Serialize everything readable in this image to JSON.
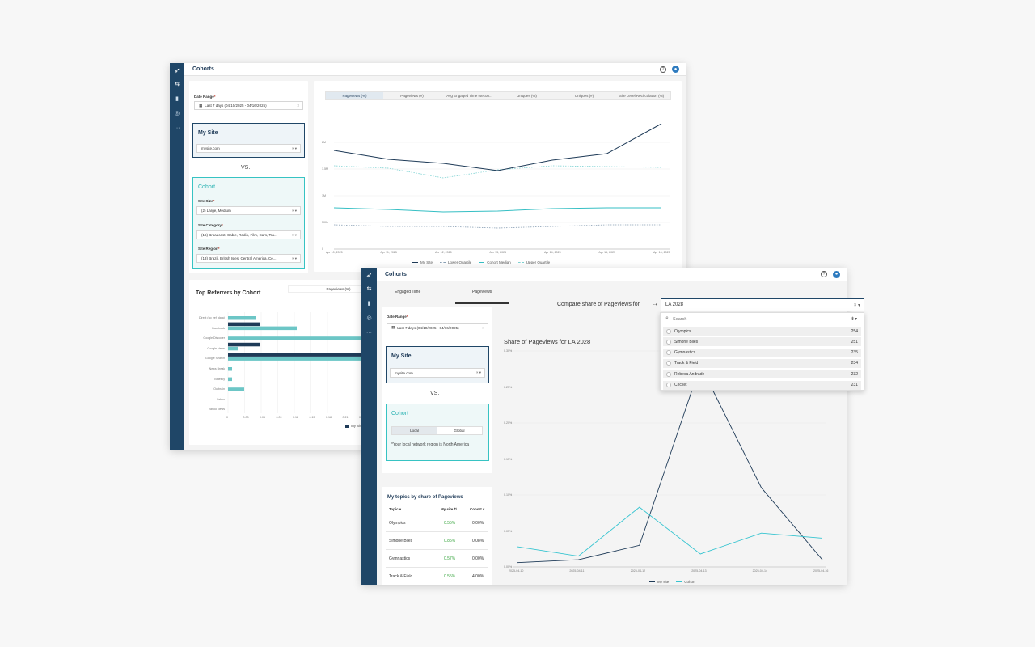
{
  "back_window": {
    "title": "Cohorts",
    "filters": {
      "date_range_label": "Date Range",
      "date_range_value": "Last 7 days (04/10/2025 - 04/16/2025)",
      "my_site_title": "My Site",
      "my_site_value": "mysite.com",
      "vs": "VS.",
      "cohort_title": "Cohort",
      "site_size_label": "Site Size",
      "site_size_value": "(2) Large, Medium",
      "site_category_label": "Site Category",
      "site_category_value": "(16) Broadcast, Cable, Radio, Film, Cars, Tru...",
      "site_region_label": "Site Region",
      "site_region_value": "(13) Brazil, British Isles, Central America, Ce..."
    },
    "metric_tabs": [
      "Pageviews (%)",
      "Pageviews (#)",
      "Avg Engaged Time (secon...",
      "Uniques (%)",
      "Uniques (#)",
      "Site Level Recirculation (%)"
    ],
    "active_metric_tab": 0,
    "trend_chart": {
      "y_ticks": [
        "2M",
        "1.5M",
        "1M",
        "500k",
        "0"
      ],
      "x_ticks": [
        "Apr 10, 2025",
        "Apr 11, 2025",
        "Apr 12, 2025",
        "Apr 13, 2025",
        "Apr 14, 2025",
        "Apr 15, 2025",
        "Apr 16, 2025"
      ],
      "legend": [
        "My Site",
        "Lower Quartile",
        "Cohort Median",
        "Upper Quartile"
      ]
    },
    "referrers": {
      "title": "Top Referrers by Cohort",
      "metric_select": "Pageviews (%)",
      "categories": [
        "Direct (no_ref_data)",
        "Facebook",
        "Google Discover",
        "Google News",
        "Google Search",
        "News Break",
        "Bluesky",
        "Outbrain",
        "Yahoo",
        "Yahoo News"
      ],
      "x_ticks": [
        "0",
        "0.03",
        "0.06",
        "0.09",
        "0.12",
        "0.15",
        "0.18",
        "0.21",
        "0.24",
        "0.27"
      ],
      "legend_my_site": "My Site"
    }
  },
  "front_window": {
    "title": "Cohorts",
    "tabs": [
      "Engaged Time",
      "Pageviews"
    ],
    "active_tab": 1,
    "date_range_label": "Date Range",
    "date_range_value": "Last 7 days (04/10/2025 - 04/16/2025)",
    "my_site_title": "My Site",
    "my_site_value": "mysite.com",
    "vs": "VS.",
    "cohort_title": "Cohort",
    "cohort_toggle": [
      "Local",
      "Global"
    ],
    "cohort_note": "*Your local network region is North America",
    "compare_label": "Compare share of Pageviews for",
    "compare_value": "LA 2028",
    "search_placeholder": "Search",
    "topic_options": [
      {
        "name": "Olympics",
        "count": "254"
      },
      {
        "name": "Simone Biles",
        "count": "251"
      },
      {
        "name": "Gymnastics",
        "count": "235"
      },
      {
        "name": "Track & Field",
        "count": "234"
      },
      {
        "name": "Rebeca Andrade",
        "count": "232"
      },
      {
        "name": "Cricket",
        "count": "231"
      }
    ],
    "topics_title": "My topics by share of Pageviews",
    "topics_headers": [
      "Topic",
      "My site",
      "Cohort"
    ],
    "topics_rows": [
      {
        "topic": "Olympics",
        "my_site": "0.55%",
        "cohort": "0.00%"
      },
      {
        "topic": "Simone Biles",
        "my_site": "0.85%",
        "cohort": "0.08%"
      },
      {
        "topic": "Gymnastics",
        "my_site": "0.57%",
        "cohort": "0.00%"
      },
      {
        "topic": "Track & Field",
        "my_site": "0.55%",
        "cohort": "4.00%"
      }
    ]
  },
  "chart_data": {
    "type": "line",
    "title": "Share of Pageviews for LA 2028",
    "x": [
      "2025-04-10",
      "2025-04-11",
      "2025-04-12",
      "2025-04-13",
      "2025-04-14",
      "2025-04-16"
    ],
    "y_ticks": [
      "0.30%",
      "0.25%",
      "0.20%",
      "0.15%",
      "0.10%",
      "0.05%",
      "0.00%"
    ],
    "ylim": [
      0,
      0.3
    ],
    "series": [
      {
        "name": "My site",
        "color": "#1f3b58",
        "values": [
          0.006,
          0.01,
          0.03,
          0.28,
          0.11,
          0.01
        ]
      },
      {
        "name": "Cohort",
        "color": "#35c4d0",
        "values": [
          0.028,
          0.015,
          0.083,
          0.018,
          0.047,
          0.04
        ]
      }
    ],
    "legend": [
      "My site",
      "Cohort"
    ]
  }
}
